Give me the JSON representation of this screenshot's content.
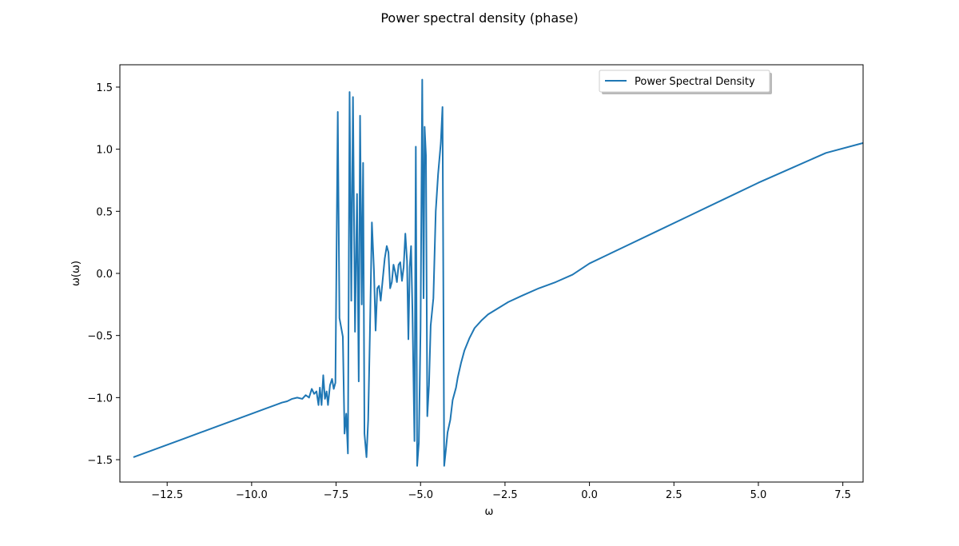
{
  "figure": {
    "title": "Power spectral density (phase)"
  },
  "chart_data": {
    "type": "line",
    "title": "Power spectral density (phase)",
    "xlabel": "ω",
    "ylabel": "ω(ω)",
    "xlim": [
      -13.9,
      8.1
    ],
    "ylim": [
      -1.68,
      1.68
    ],
    "xticks": [
      -12.5,
      -10.0,
      -7.5,
      -5.0,
      -2.5,
      0.0,
      2.5,
      5.0,
      7.5
    ],
    "xtick_labels": [
      "−12.5",
      "−10.0",
      "−7.5",
      "−5.0",
      "−2.5",
      "0.0",
      "2.5",
      "5.0",
      "7.5"
    ],
    "yticks": [
      -1.5,
      -1.0,
      -0.5,
      0.0,
      0.5,
      1.0,
      1.5
    ],
    "ytick_labels": [
      "−1.5",
      "−1.0",
      "−0.5",
      "0.0",
      "0.5",
      "1.0",
      "1.5"
    ],
    "grid": false,
    "legend": {
      "position": "upper-center-right",
      "entries": [
        "Power Spectral Density"
      ]
    },
    "series": [
      {
        "name": "Power Spectral Density",
        "color": "#1f77b4",
        "points": [
          [
            -13.5,
            -1.48
          ],
          [
            -13.0,
            -1.43
          ],
          [
            -12.5,
            -1.38
          ],
          [
            -12.0,
            -1.33
          ],
          [
            -11.5,
            -1.28
          ],
          [
            -11.0,
            -1.23
          ],
          [
            -10.5,
            -1.18
          ],
          [
            -10.0,
            -1.13
          ],
          [
            -9.6,
            -1.09
          ],
          [
            -9.3,
            -1.06
          ],
          [
            -9.1,
            -1.04
          ],
          [
            -8.95,
            -1.03
          ],
          [
            -8.8,
            -1.01
          ],
          [
            -8.65,
            -1.0
          ],
          [
            -8.5,
            -1.01
          ],
          [
            -8.4,
            -0.98
          ],
          [
            -8.3,
            -1.0
          ],
          [
            -8.22,
            -0.93
          ],
          [
            -8.15,
            -0.97
          ],
          [
            -8.08,
            -0.95
          ],
          [
            -8.02,
            -1.06
          ],
          [
            -7.98,
            -0.92
          ],
          [
            -7.93,
            -1.06
          ],
          [
            -7.88,
            -0.82
          ],
          [
            -7.83,
            -1.01
          ],
          [
            -7.78,
            -0.95
          ],
          [
            -7.74,
            -1.06
          ],
          [
            -7.68,
            -0.9
          ],
          [
            -7.62,
            -0.85
          ],
          [
            -7.57,
            -0.93
          ],
          [
            -7.52,
            -0.88
          ],
          [
            -7.45,
            1.3
          ],
          [
            -7.4,
            -0.36
          ],
          [
            -7.3,
            -0.51
          ],
          [
            -7.25,
            -1.29
          ],
          [
            -7.2,
            -1.13
          ],
          [
            -7.15,
            -1.45
          ],
          [
            -7.1,
            1.46
          ],
          [
            -7.05,
            -0.22
          ],
          [
            -7.0,
            1.42
          ],
          [
            -6.94,
            -0.47
          ],
          [
            -6.88,
            0.64
          ],
          [
            -6.83,
            -0.87
          ],
          [
            -6.79,
            1.27
          ],
          [
            -6.74,
            -0.25
          ],
          [
            -6.7,
            0.89
          ],
          [
            -6.66,
            -1.29
          ],
          [
            -6.6,
            -1.48
          ],
          [
            -6.55,
            -1.18
          ],
          [
            -6.5,
            -0.5
          ],
          [
            -6.44,
            0.41
          ],
          [
            -6.38,
            0.03
          ],
          [
            -6.33,
            -0.46
          ],
          [
            -6.28,
            -0.12
          ],
          [
            -6.23,
            -0.1
          ],
          [
            -6.18,
            -0.22
          ],
          [
            -6.12,
            -0.05
          ],
          [
            -6.06,
            0.12
          ],
          [
            -6.0,
            0.22
          ],
          [
            -5.95,
            0.17
          ],
          [
            -5.9,
            -0.12
          ],
          [
            -5.85,
            -0.07
          ],
          [
            -5.8,
            0.07
          ],
          [
            -5.75,
            0.01
          ],
          [
            -5.7,
            -0.07
          ],
          [
            -5.65,
            0.07
          ],
          [
            -5.6,
            0.09
          ],
          [
            -5.55,
            -0.06
          ],
          [
            -5.5,
            0.05
          ],
          [
            -5.45,
            0.32
          ],
          [
            -5.4,
            0.1
          ],
          [
            -5.36,
            -0.53
          ],
          [
            -5.32,
            0.05
          ],
          [
            -5.28,
            0.22
          ],
          [
            -5.24,
            -0.3
          ],
          [
            -5.18,
            -1.35
          ],
          [
            -5.14,
            1.02
          ],
          [
            -5.1,
            -1.55
          ],
          [
            -5.05,
            -1.36
          ],
          [
            -5.0,
            -0.45
          ],
          [
            -4.95,
            1.56
          ],
          [
            -4.91,
            -0.2
          ],
          [
            -4.88,
            1.18
          ],
          [
            -4.84,
            0.95
          ],
          [
            -4.8,
            -1.15
          ],
          [
            -4.75,
            -0.9
          ],
          [
            -4.7,
            -0.42
          ],
          [
            -4.62,
            -0.2
          ],
          [
            -4.55,
            0.5
          ],
          [
            -4.48,
            0.8
          ],
          [
            -4.4,
            1.05
          ],
          [
            -4.35,
            1.34
          ],
          [
            -4.3,
            -1.55
          ],
          [
            -4.25,
            -1.42
          ],
          [
            -4.2,
            -1.28
          ],
          [
            -4.12,
            -1.18
          ],
          [
            -4.05,
            -1.02
          ],
          [
            -3.95,
            -0.92
          ],
          [
            -3.9,
            -0.84
          ],
          [
            -3.8,
            -0.72
          ],
          [
            -3.7,
            -0.62
          ],
          [
            -3.55,
            -0.52
          ],
          [
            -3.4,
            -0.44
          ],
          [
            -3.2,
            -0.38
          ],
          [
            -3.0,
            -0.33
          ],
          [
            -2.7,
            -0.28
          ],
          [
            -2.4,
            -0.23
          ],
          [
            -2.0,
            -0.18
          ],
          [
            -1.5,
            -0.12
          ],
          [
            -1.0,
            -0.07
          ],
          [
            -0.5,
            -0.01
          ],
          [
            0.0,
            0.08
          ],
          [
            1.0,
            0.21
          ],
          [
            2.0,
            0.34
          ],
          [
            3.0,
            0.47
          ],
          [
            4.0,
            0.6
          ],
          [
            5.0,
            0.73
          ],
          [
            6.0,
            0.85
          ],
          [
            7.0,
            0.97
          ],
          [
            8.1,
            1.05
          ]
        ]
      }
    ]
  }
}
